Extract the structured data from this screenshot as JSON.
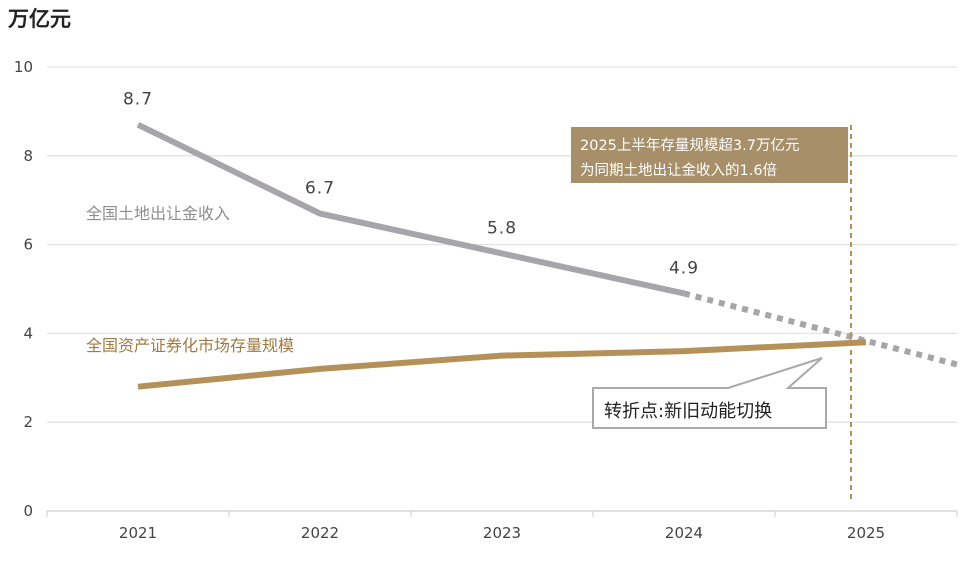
{
  "chart_data": {
    "type": "line",
    "ylabel": "万亿元",
    "ylim": [
      0,
      10
    ],
    "yticks": [
      "0",
      "2",
      "4",
      "6",
      "8",
      "10"
    ],
    "categories": [
      "2021",
      "2022",
      "2023",
      "2024",
      "2025"
    ],
    "grid": true,
    "series": [
      {
        "name": "全国土地出让金收入",
        "values": [
          8.7,
          6.7,
          5.8,
          4.9,
          null
        ],
        "data_labels": [
          "8.7",
          "6.7",
          "5.8",
          "4.9"
        ],
        "projection": {
          "from": [
            "2024",
            4.9
          ],
          "to": [
            "2025.5",
            3.3
          ],
          "style": "dotted"
        },
        "color": "#a7a5aa"
      },
      {
        "name": "全国资产证券化市场存量规模",
        "values": [
          2.8,
          3.2,
          3.5,
          3.6,
          3.8
        ],
        "color": "#b5915a"
      }
    ],
    "annotations": {
      "box_line1": "2025上半年存量规模超3.7万亿元",
      "box_line2": "为同期土地出让金收入的1.6倍",
      "box_color": "#a68f69",
      "callout": "转折点:新旧动能切换",
      "vline_at": "2025",
      "vline_color": "#b5915a"
    }
  }
}
